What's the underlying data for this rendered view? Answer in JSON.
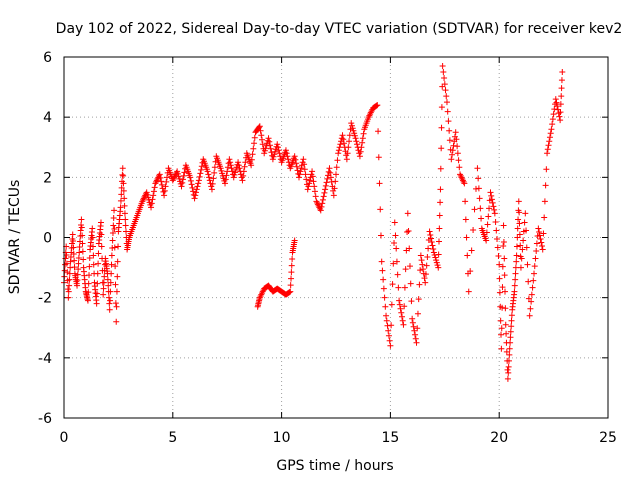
{
  "chart_data": {
    "type": "scatter",
    "title": "Day 102 of 2022, Sidereal Day-to-day VTEC variation (SDTVAR) for receiver kev2",
    "xlabel": "GPS time / hours",
    "ylabel": "SDTVAR / TECUs",
    "xlim": [
      0,
      25
    ],
    "ylim": [
      -6,
      6
    ],
    "xticks": [
      0,
      5,
      10,
      15,
      20,
      25
    ],
    "yticks": [
      -6,
      -4,
      -2,
      0,
      2,
      4,
      6
    ],
    "grid": true,
    "marker": "+",
    "color": "#ff0000",
    "series": [
      {
        "name": "kev2",
        "x": [
          0.0,
          0.1,
          0.2,
          0.3,
          0.4,
          0.5,
          0.6,
          0.7,
          0.8,
          0.9,
          1.0,
          1.1,
          1.2,
          1.3,
          1.4,
          1.5,
          1.6,
          1.7,
          1.8,
          1.9,
          2.0,
          2.1,
          2.2,
          2.3,
          2.4,
          2.5,
          2.6,
          2.7,
          2.8,
          2.9,
          3.0,
          3.2,
          3.4,
          3.6,
          3.8,
          4.0,
          4.2,
          4.4,
          4.6,
          4.8,
          5.0,
          5.2,
          5.4,
          5.6,
          5.8,
          6.0,
          6.2,
          6.4,
          6.6,
          6.8,
          7.0,
          7.2,
          7.4,
          7.6,
          7.8,
          8.0,
          8.2,
          8.4,
          8.6,
          8.8,
          9.0,
          9.2,
          9.4,
          9.6,
          9.8,
          10.0,
          10.2,
          10.4,
          10.6,
          10.8,
          11.0,
          11.2,
          11.4,
          11.6,
          11.8,
          12.0,
          12.2,
          12.4,
          12.6,
          12.8,
          13.0,
          13.2,
          13.4,
          13.6,
          13.8,
          14.0,
          14.2,
          14.4,
          14.6,
          14.8,
          15.0,
          15.2,
          15.4,
          15.6,
          15.8,
          16.0,
          16.2,
          16.4,
          16.6,
          16.8,
          17.0,
          17.2,
          17.3,
          17.4,
          17.6,
          17.8,
          18.0,
          18.2,
          18.4,
          18.6,
          19.0,
          19.2,
          19.4,
          19.6,
          19.8,
          20.0,
          20.1,
          20.2,
          20.3,
          20.4,
          20.5,
          20.6,
          20.7,
          20.8,
          20.9,
          21.0,
          21.2,
          21.4,
          21.6,
          21.8,
          22.0,
          22.2,
          22.4,
          22.6,
          22.8,
          22.9
        ],
        "y": [
          -1.5,
          -0.3,
          -2.0,
          -0.8,
          0.1,
          -1.2,
          -1.6,
          -0.5,
          0.6,
          -1.0,
          -1.8,
          -2.1,
          -0.4,
          0.3,
          -1.5,
          -2.2,
          -0.2,
          0.5,
          -1.9,
          -0.7,
          -1.2,
          -2.4,
          -0.6,
          0.9,
          -2.8,
          0.2,
          1.0,
          2.3,
          0.8,
          -0.4,
          0.0,
          0.4,
          0.8,
          1.2,
          1.5,
          1.0,
          1.8,
          2.1,
          1.4,
          2.3,
          1.9,
          2.2,
          1.7,
          2.4,
          2.0,
          1.3,
          1.9,
          2.6,
          2.2,
          1.6,
          2.7,
          2.3,
          1.8,
          2.6,
          2.0,
          2.5,
          1.9,
          2.8,
          2.4,
          3.5,
          3.7,
          2.8,
          3.3,
          2.6,
          3.1,
          2.5,
          2.9,
          2.3,
          2.7,
          2.0,
          2.6,
          1.6,
          2.2,
          1.2,
          0.9,
          1.6,
          2.3,
          1.4,
          2.8,
          3.4,
          2.6,
          3.8,
          3.3,
          2.7,
          3.6,
          4.0,
          4.3,
          4.4,
          -0.8,
          -2.6,
          -3.6,
          0.5,
          -2.1,
          -2.9,
          0.8,
          -2.7,
          -3.5,
          -0.6,
          -1.5,
          0.2,
          -0.5,
          -1.0,
          1.6,
          5.7,
          4.5,
          2.6,
          3.5,
          2.1,
          1.8,
          -1.8,
          2.3,
          0.3,
          -0.1,
          1.5,
          0.8,
          -0.9,
          -3.7,
          0.4,
          -2.9,
          -4.7,
          -3.5,
          -2.4,
          -1.8,
          -0.6,
          1.2,
          -1.0,
          0.8,
          -2.6,
          -1.2,
          0.3,
          -0.4,
          2.8,
          3.6,
          4.6,
          3.9,
          5.5
        ],
        "x2": [
          8.9,
          9.0,
          9.2,
          9.4,
          9.6,
          9.8,
          10.0,
          10.2,
          10.4,
          10.5,
          10.6
        ],
        "y2": [
          -2.3,
          -2.0,
          -1.7,
          -1.6,
          -1.8,
          -1.7,
          -1.8,
          -1.9,
          -1.8,
          -0.5,
          -0.1
        ]
      }
    ]
  }
}
